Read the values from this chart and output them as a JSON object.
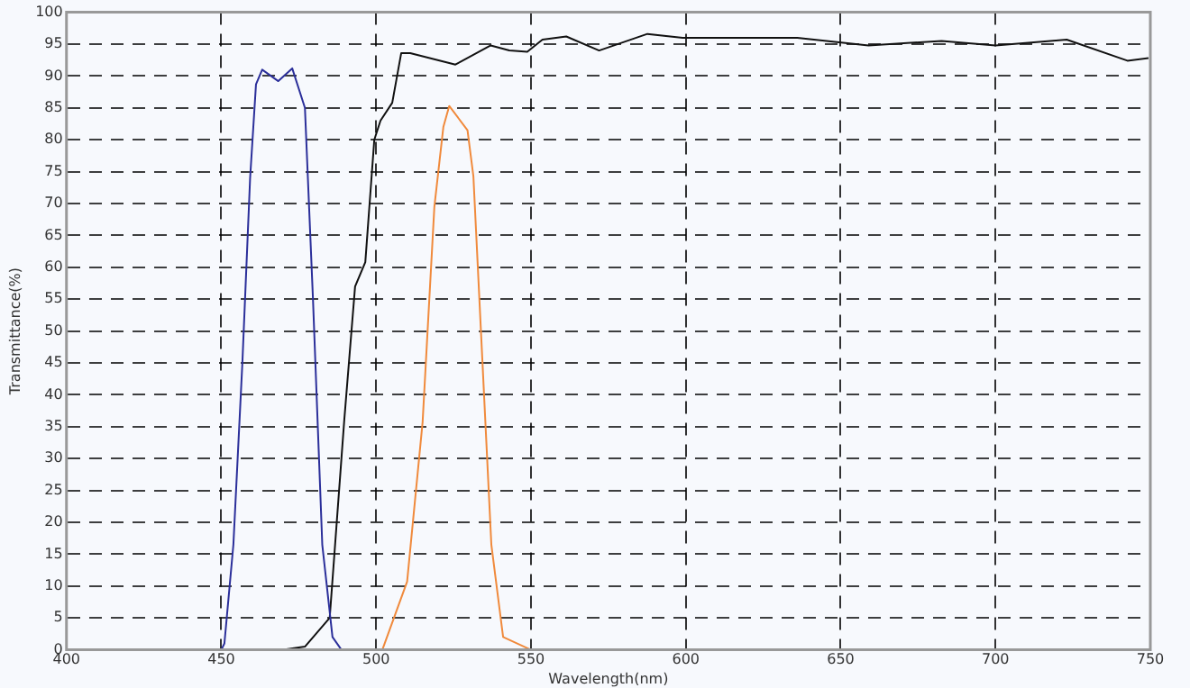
{
  "chart_data": {
    "type": "line",
    "xlabel": "Wavelength(nm)",
    "ylabel": "Transmittance(%)",
    "xlim": [
      400,
      750
    ],
    "xticks": [
      400,
      450,
      500,
      550,
      600,
      650,
      700,
      750
    ],
    "ylim": [
      0,
      100
    ],
    "yticks": [
      0,
      5,
      10,
      15,
      20,
      25,
      30,
      35,
      40,
      45,
      50,
      55,
      60,
      65,
      70,
      75,
      80,
      85,
      90,
      95,
      100
    ],
    "grid": true,
    "legend": false,
    "marker": "none",
    "line_style": "solid",
    "series": [
      {
        "color": "#2b2f9a",
        "x": [
          450,
          451,
          453.9,
          456.8,
          459.3,
          461.2,
          463.2,
          468.4,
          472.9,
          477,
          479.6,
          482.6,
          485.9,
          488.8
        ],
        "values": [
          0,
          1,
          16.5,
          45,
          74,
          88.7,
          91,
          89.2,
          91.2,
          85,
          55,
          16.5,
          2,
          0
        ]
      },
      {
        "color": "#111111",
        "x": [
          400,
          470,
          477,
          485,
          489.7,
          493.2,
          496.5,
          499.4,
          501.4,
          505.2,
          508.1,
          511,
          525.6,
          537,
          543,
          548.8,
          553.7,
          561.4,
          572,
          587.6,
          599,
          636,
          659,
          682.6,
          700,
          723,
          742.6,
          749.4
        ],
        "values": [
          0,
          0,
          0.5,
          5,
          36,
          57,
          60.8,
          80,
          83,
          85.8,
          93.6,
          93.6,
          91.8,
          94.8,
          94,
          93.8,
          95.7,
          96.2,
          94,
          96.6,
          96,
          96,
          94.8,
          95.5,
          94.8,
          95.7,
          92.4,
          92.8
        ]
      },
      {
        "color": "#f08a3c",
        "x": [
          502,
          510,
          515,
          518.8,
          521.7,
          523.6,
          529.5,
          531.4,
          534.3,
          537.2,
          541,
          550
        ],
        "values": [
          0,
          10.7,
          35.7,
          69.5,
          82,
          85.3,
          81.5,
          74.3,
          45.4,
          16.5,
          2,
          0
        ]
      }
    ]
  }
}
